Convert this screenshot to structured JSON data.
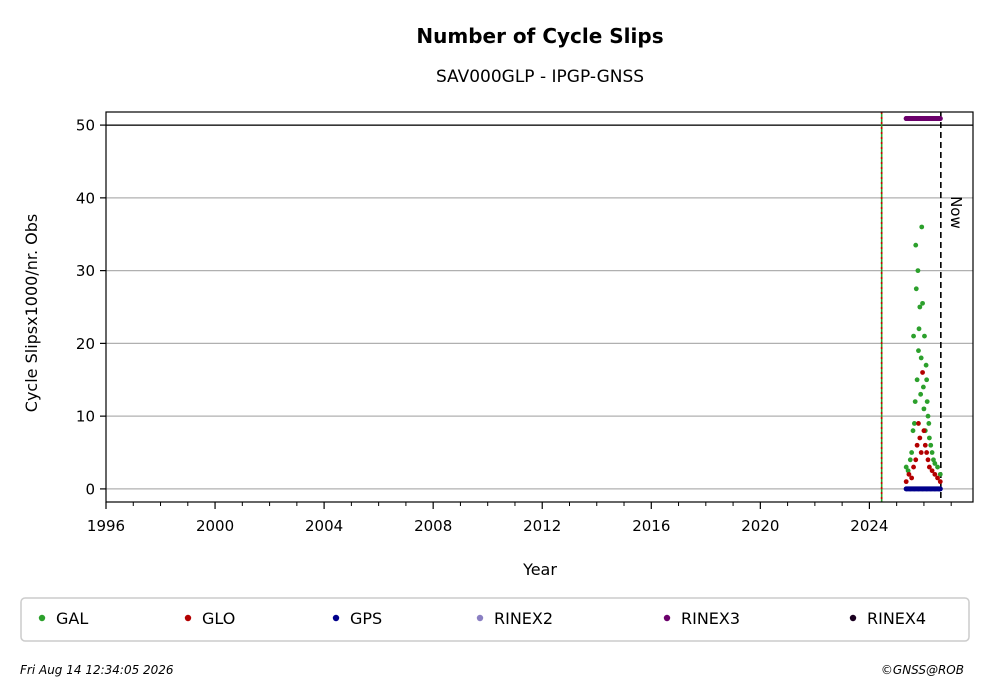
{
  "chart_data": {
    "type": "scatter",
    "title": "Number of Cycle Slips",
    "subtitle": "SAV000GLP - IPGP-GNSS",
    "xlabel": "Year",
    "ylabel": "Cycle Slipsx1000/nr. Obs",
    "xlim": [
      1996,
      2027.8
    ],
    "ylim": [
      -1.8,
      51.8
    ],
    "x_ticks": [
      "1996",
      "2000",
      "2004",
      "2008",
      "2012",
      "2016",
      "2020",
      "2024"
    ],
    "y_ticks": [
      "0",
      "10",
      "20",
      "30",
      "40",
      "50"
    ],
    "grid": "horizontal",
    "reference_line_y": 50,
    "vertical_markers": [
      {
        "x": 2024.45,
        "style": "dotted",
        "colors": [
          "#2ca02c",
          "#cc0000"
        ]
      },
      {
        "x": 2026.62,
        "style": "dashed",
        "color": "#000000",
        "label": "Now"
      }
    ],
    "legend_position": "below",
    "series": [
      {
        "name": "GAL",
        "color": "#2ca02c",
        "x": [
          2025.35,
          2025.42,
          2025.5,
          2025.55,
          2025.6,
          2025.62,
          2025.65,
          2025.68,
          2025.7,
          2025.72,
          2025.75,
          2025.78,
          2025.8,
          2025.82,
          2025.85,
          2025.88,
          2025.9,
          2025.92,
          2025.95,
          2025.98,
          2026.0,
          2026.02,
          2026.05,
          2026.08,
          2026.1,
          2026.12,
          2026.15,
          2026.18,
          2026.2,
          2026.25,
          2026.3,
          2026.35,
          2026.4,
          2026.5,
          2026.6
        ],
        "y": [
          3,
          2.5,
          4,
          5,
          8,
          21,
          9,
          12,
          33.5,
          27.5,
          15,
          30,
          19,
          22,
          25,
          13,
          18,
          36,
          25.5,
          14,
          11,
          21,
          8,
          17,
          15,
          12,
          10,
          9,
          7,
          6,
          5,
          4,
          3.5,
          3,
          2
        ]
      },
      {
        "name": "GLO",
        "color": "#b30000",
        "x": [
          2025.35,
          2025.45,
          2025.55,
          2025.62,
          2025.7,
          2025.75,
          2025.8,
          2025.85,
          2025.9,
          2025.95,
          2026.0,
          2026.05,
          2026.1,
          2026.15,
          2026.2,
          2026.3,
          2026.4,
          2026.5,
          2026.6
        ],
        "y": [
          1,
          2,
          1.5,
          3,
          4,
          6,
          9,
          7,
          5,
          16,
          8,
          6,
          5,
          4,
          3,
          2.5,
          2,
          1.5,
          1
        ]
      },
      {
        "name": "GPS",
        "color": "#00008b",
        "x": [
          2025.35,
          2025.5,
          2025.65,
          2025.8,
          2025.95,
          2026.1,
          2026.25,
          2026.4,
          2026.55,
          2026.6
        ],
        "y": [
          0,
          0,
          0,
          0,
          0,
          0,
          0,
          0,
          0,
          0
        ]
      },
      {
        "name": "RINEX2",
        "color": "#8a7fc2",
        "x": [],
        "y": []
      },
      {
        "name": "RINEX3",
        "color": "#6b006b",
        "x": [
          2025.35,
          2025.5,
          2025.65,
          2025.8,
          2025.95,
          2026.1,
          2026.25,
          2026.4,
          2026.55,
          2026.6
        ],
        "y": [
          50.9,
          50.9,
          50.9,
          50.9,
          50.9,
          50.9,
          50.9,
          50.9,
          50.9,
          50.9
        ]
      },
      {
        "name": "RINEX4",
        "color": "#1a0020",
        "x": [],
        "y": []
      }
    ]
  },
  "footer": {
    "timestamp": "Fri Aug 14 12:34:05 2026",
    "credit": "©GNSS@ROB"
  }
}
